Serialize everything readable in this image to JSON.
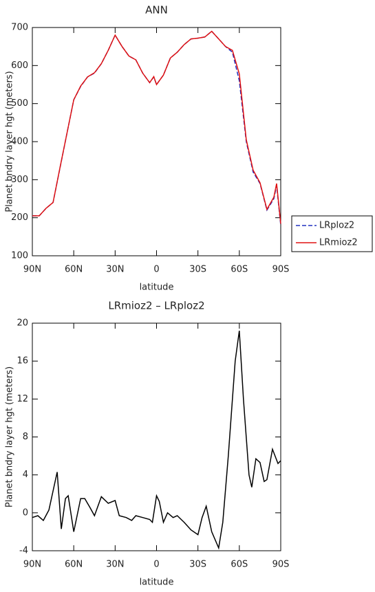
{
  "chart_data": [
    {
      "type": "line",
      "title": "ANN",
      "xlabel": "latitude",
      "ylabel": "Planet bndry layer hgt (meters)",
      "x": [
        90,
        85,
        80,
        75,
        70,
        65,
        60,
        55,
        50,
        45,
        40,
        35,
        30,
        25,
        20,
        15,
        10,
        5,
        2,
        0,
        -5,
        -10,
        -15,
        -20,
        -25,
        -30,
        -35,
        -40,
        -45,
        -50,
        -55,
        -60,
        -65,
        -70,
        -75,
        -80,
        -85,
        -87,
        -90
      ],
      "series": [
        {
          "name": "LRploz2",
          "color": "#2030c0",
          "linestyle": "dashed",
          "values": [
            205,
            205,
            225,
            240,
            330,
            420,
            510,
            545,
            570,
            580,
            605,
            640,
            680,
            650,
            625,
            615,
            580,
            555,
            570,
            550,
            575,
            620,
            635,
            655,
            670,
            672,
            675,
            690,
            670,
            650,
            635,
            560,
            400,
            320,
            290,
            220,
            250,
            285,
            180
          ]
        },
        {
          "name": "LRmioz2",
          "color": "#e01010",
          "linestyle": "solid",
          "values": [
            205,
            205,
            225,
            240,
            331,
            420,
            510,
            546,
            570,
            581,
            605,
            640,
            680,
            650,
            625,
            615,
            580,
            555,
            571,
            550,
            575,
            620,
            635,
            655,
            670,
            672,
            675,
            690,
            670,
            650,
            640,
            578,
            405,
            325,
            292,
            222,
            254,
            290,
            184
          ]
        }
      ],
      "xlim": [
        90,
        -90
      ],
      "xticks": [
        {
          "value": 90,
          "label": "90N"
        },
        {
          "value": 60,
          "label": "60N"
        },
        {
          "value": 30,
          "label": "30N"
        },
        0,
        {
          "value": -30,
          "label": "30S"
        },
        {
          "value": -60,
          "label": "60S"
        },
        {
          "value": -90,
          "label": "90S"
        }
      ],
      "ylim": [
        100,
        700
      ],
      "yticks": [
        100,
        200,
        300,
        400,
        500,
        600,
        700
      ],
      "legend": "right"
    },
    {
      "type": "line",
      "title": "LRmioz2 – LRploz2",
      "xlabel": "latitude",
      "ylabel": "Planet bndry layer hgt (meters)",
      "x": [
        90,
        86,
        82,
        78,
        72,
        69,
        66,
        64,
        60,
        55,
        52,
        48,
        45,
        40,
        35,
        30,
        27,
        22,
        18,
        15,
        10,
        5,
        3,
        0,
        -2,
        -5,
        -8,
        -12,
        -15,
        -20,
        -25,
        -30,
        -33,
        -36,
        -40,
        -45,
        -48,
        -52,
        -57,
        -60,
        -63,
        -67,
        -69,
        -72,
        -75,
        -78,
        -80,
        -84,
        -88,
        -90
      ],
      "series": [
        {
          "color": "#000000",
          "linestyle": "solid",
          "values": [
            -0.5,
            -0.3,
            -0.8,
            0.3,
            4.3,
            -1.7,
            1.5,
            1.8,
            -2,
            1.5,
            1.5,
            0.5,
            -0.3,
            1.7,
            1,
            1.3,
            -0.3,
            -0.5,
            -0.8,
            -0.3,
            -0.5,
            -0.7,
            -1,
            1.8,
            1.2,
            -1,
            0,
            -0.5,
            -0.3,
            -1,
            -1.8,
            -2.3,
            -0.5,
            0.7,
            -2,
            -3.7,
            -1,
            6,
            16,
            19.2,
            12,
            4,
            2.7,
            5.7,
            5.3,
            3.3,
            3.5,
            6.7,
            5.2,
            5.5
          ]
        }
      ],
      "xlim": [
        90,
        -90
      ],
      "xticks": [
        {
          "value": 90,
          "label": "90N"
        },
        {
          "value": 60,
          "label": "60N"
        },
        {
          "value": 30,
          "label": "30N"
        },
        0,
        {
          "value": -30,
          "label": "30S"
        },
        {
          "value": -60,
          "label": "60S"
        },
        {
          "value": -90,
          "label": "90S"
        }
      ],
      "ylim": [
        -4,
        20
      ],
      "yticks": [
        -4,
        0,
        4,
        8,
        12,
        16,
        20
      ]
    }
  ]
}
